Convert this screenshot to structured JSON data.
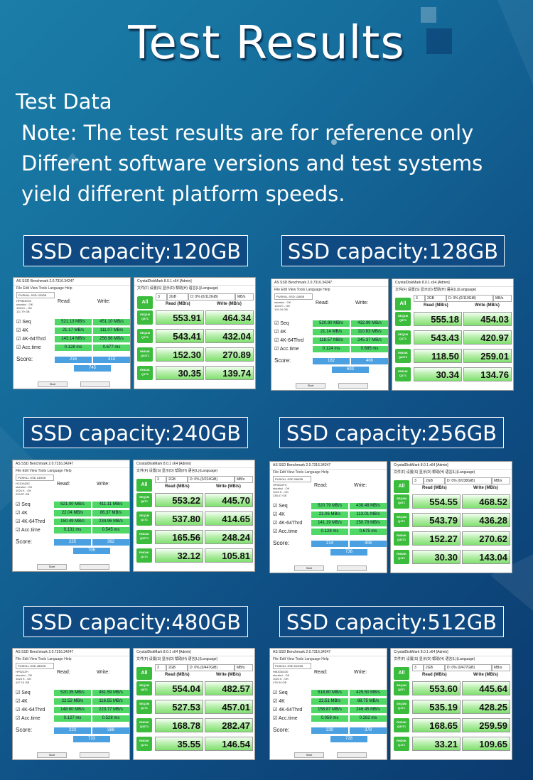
{
  "title": "Test Results",
  "note": {
    "heading": "Test Data",
    "lines": [
      "Note: The test results are for reference only",
      "Different software versions and test systems",
      "yield different platform speeds."
    ]
  },
  "app_labels": {
    "as_title": "AS SSD Benchmark 2.0.7316.34247",
    "as_menu": "File  Edit  View  Tools  Language  Help",
    "as_read": "Read:",
    "as_write": "Write:",
    "as_rows": [
      "Seq",
      "4K",
      "4K-64Thrd",
      "Acc.time"
    ],
    "as_score": "Score:",
    "as_start": "Start",
    "cd_title": "CrystalDiskMark 8.0.1 x64 [Admin]",
    "cd_menu": "文件(F)  设置(S)  显示(D)  帮助(H)  语言(L)(Language)",
    "cd_all": "All",
    "cd_count": "3",
    "cd_size": "2GB",
    "cd_unit": "MB/s",
    "cd_read": "Read (MB/s)",
    "cd_write": "Write (MB/s)",
    "cd_tests": [
      "SEQ1M\nQ8T1",
      "SEQ1M\nQ1T1",
      "RND4K\nQ32T1",
      "RND4K\nQ1T1"
    ]
  },
  "sections": [
    {
      "capacity": "SSD capacity:120GB",
      "as_drive": "PUSKILL SSD 120GB",
      "as_info": "HP5M30G9\nstorahci - OK\n1024 K - OK\n111.79 GB",
      "as_read": [
        "521.13 MB/s",
        "21.17 MB/s",
        "143.14 MB/s",
        "0.128 ms"
      ],
      "as_write": [
        "451.10 MB/s",
        "111.07 MB/s",
        "256.98 MB/s",
        "0.677 ms"
      ],
      "as_score": [
        "216",
        "413",
        "745"
      ],
      "cd_drive": "D: 0% (0/112GiB)",
      "cd_read": [
        "553.91",
        "543.41",
        "152.30",
        "30.35"
      ],
      "cd_write": [
        "464.34",
        "432.04",
        "270.89",
        "139.74"
      ]
    },
    {
      "capacity": "SSD capacity:128GB",
      "as_drive": "PUSKILL SSD 128GB",
      "as_info": "storahci - OK\n1024 K - OK\n119.24 GB",
      "as_read": [
        "520.90 MB/s",
        "21.14 MB/s",
        "118.57 MB/s",
        "0.124 ms"
      ],
      "as_write": [
        "432.99 MB/s",
        "110.83 MB/s",
        "245.37 MB/s",
        "0.685 ms"
      ],
      "as_score": [
        "182",
        "400",
        "693"
      ],
      "cd_drive": "D: 0% (0/119GiB)",
      "cd_read": [
        "555.18",
        "543.43",
        "118.50",
        "30.34"
      ],
      "cd_write": [
        "454.03",
        "420.97",
        "259.01",
        "134.76"
      ]
    },
    {
      "capacity": "SSD capacity:240GB",
      "as_drive": "PUSKILL SSD 240GB",
      "as_info": "HC51A25C\nstorahci - OK\n1024 K - OK\n223.57 GB",
      "as_read": [
        "521.00 MB/s",
        "22.04 MB/s",
        "150.49 MB/s",
        "0.131 ms"
      ],
      "as_write": [
        "411.11 MB/s",
        "86.37 MB/s",
        "234.96 MB/s",
        "0.545 ms"
      ],
      "as_score": [
        "225",
        "362",
        "705"
      ],
      "cd_drive": "D: 0% (0/224GiB)",
      "cd_read": [
        "553.22",
        "537.80",
        "165.56",
        "32.12"
      ],
      "cd_write": [
        "445.70",
        "414.65",
        "248.24",
        "105.81"
      ]
    },
    {
      "capacity": "SSD capacity:256GB",
      "as_drive": "PUSKILL SSD 256GB",
      "as_info": "HP5222FX\nstorahci - OK\n1024 K - OK\n238.47 GB",
      "as_read": [
        "520.79 MB/s",
        "21.06 MB/s",
        "141.19 MB/s",
        "0.128 ms"
      ],
      "as_write": [
        "438.48 MB/s",
        "113.01 MB/s",
        "250.78 MB/s",
        "0.675 ms"
      ],
      "as_score": [
        "214",
        "408",
        "736"
      ],
      "cd_drive": "D: 0% (0/238GiB)",
      "cd_read": [
        "554.55",
        "543.79",
        "152.27",
        "30.30"
      ],
      "cd_write": [
        "468.52",
        "436.28",
        "270.62",
        "143.04"
      ]
    },
    {
      "capacity": "SSD capacity:480GB",
      "as_drive": "PUSKILL SSD 480GB",
      "as_info": "HP5222FI\nstorahci - OK\n1024 K - OK\n447.13 GB",
      "as_read": [
        "520.35 MB/s",
        "22.52 MB/s",
        "148.80 MB/s",
        "0.127 ms"
      ],
      "as_write": [
        "481.59 MB/s",
        "116.55 MB/s",
        "223.77 MB/s",
        "0.528 ms"
      ],
      "as_score": [
        "223",
        "388",
        "733"
      ],
      "cd_drive": "D: 0% (0/447GiB)",
      "cd_read": [
        "554.04",
        "527.53",
        "168.78",
        "35.55"
      ],
      "cd_write": [
        "482.57",
        "457.01",
        "282.47",
        "146.54"
      ]
    },
    {
      "capacity": "SSD capacity:512GB",
      "as_drive": "PUSKILL SSD 512GB",
      "as_info": "HM3G8G30\nstorahci - OK\n1024 K - OK\n476.94 GB",
      "as_read": [
        "518.80 MB/s",
        "22.51 MB/s",
        "156.87 MB/s",
        "0.059 ms"
      ],
      "as_write": [
        "425.50 MB/s",
        "88.75 MB/s",
        "246.45 MB/s",
        "0.282 ms"
      ],
      "as_score": [
        "230",
        "378",
        "728"
      ],
      "cd_drive": "D: 0% (0/477GiB)",
      "cd_read": [
        "553.60",
        "535.19",
        "168.65",
        "33.21"
      ],
      "cd_write": [
        "445.64",
        "428.25",
        "259.59",
        "109.65"
      ]
    }
  ]
}
